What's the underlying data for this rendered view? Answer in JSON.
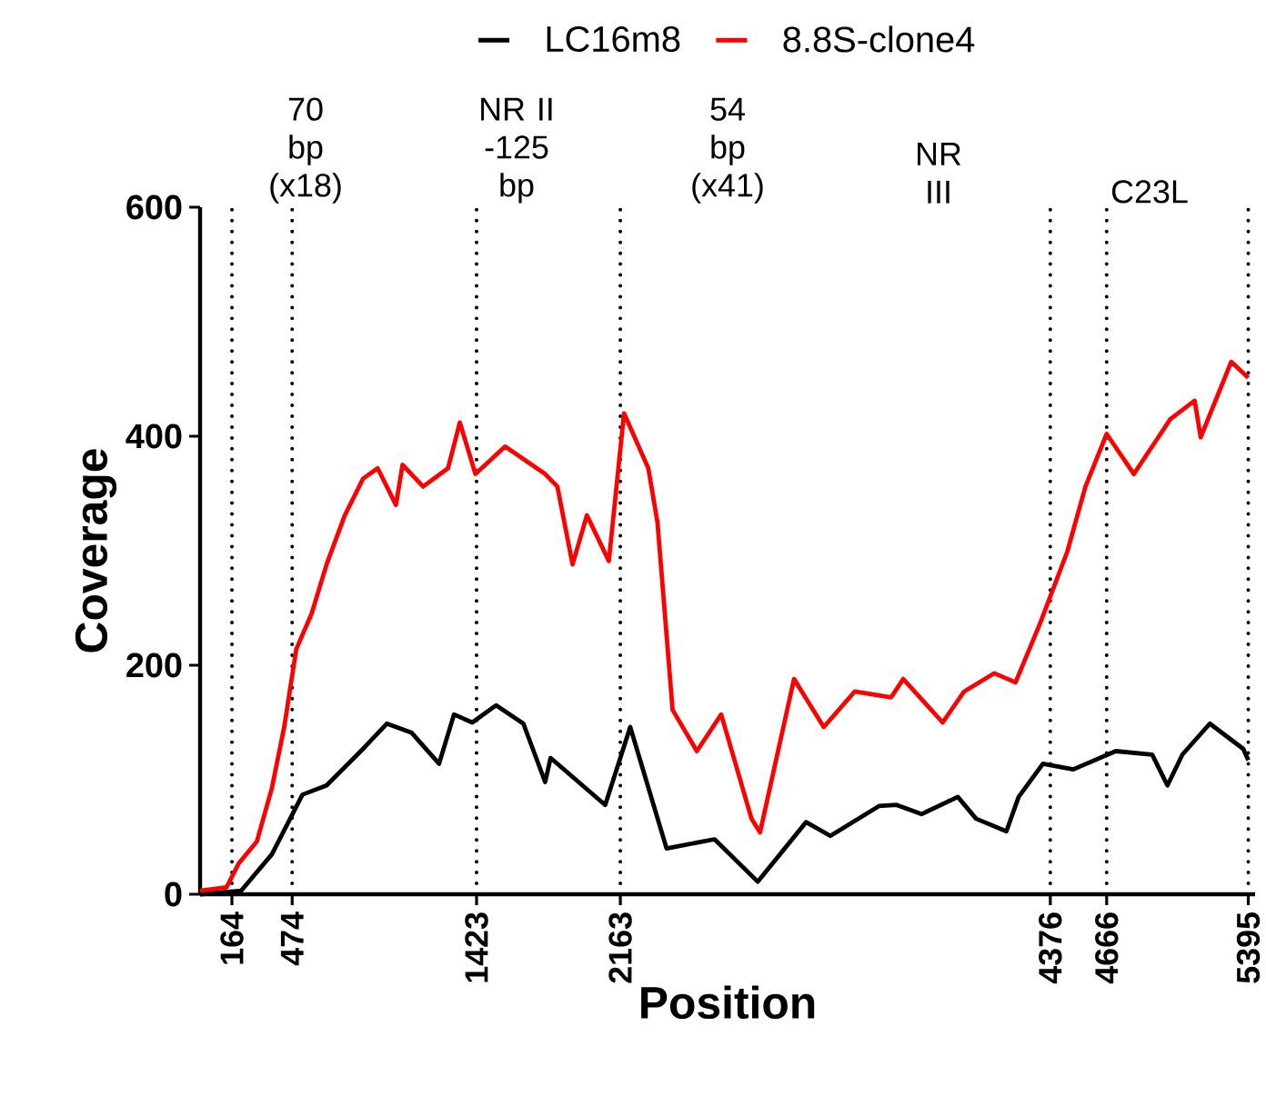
{
  "chart_data": {
    "type": "line",
    "xlabel": "Position",
    "ylabel": "Coverage",
    "xlim": [
      0,
      5430
    ],
    "ylim": [
      0,
      600
    ],
    "xticks": [
      164,
      474,
      1423,
      2163,
      4376,
      4666,
      5395
    ],
    "yticks": [
      0,
      200,
      400,
      600
    ],
    "grid": false,
    "legend": "top",
    "marker": "none",
    "line_style": "solid",
    "series": [
      {
        "name": "LC16m8",
        "color": "#000000",
        "x": [
          0,
          211,
          370,
          527,
          651,
          839,
          961,
          1089,
          1230,
          1307,
          1401,
          1523,
          1664,
          1776,
          1804,
          2085,
          2214,
          2401,
          2648,
          2870,
          3119,
          3244,
          3494,
          3585,
          3713,
          3900,
          3994,
          4150,
          4213,
          4338,
          4494,
          4713,
          4900,
          4979,
          5056,
          5197,
          5369,
          5395
        ],
        "values": [
          0,
          3,
          35,
          87,
          95,
          127,
          149,
          141,
          114,
          157,
          150,
          165,
          149,
          98,
          119,
          78,
          146,
          40,
          48,
          11,
          63,
          51,
          77,
          78,
          70,
          85,
          66,
          55,
          85,
          114,
          109,
          125,
          122,
          95,
          122,
          149,
          127,
          117
        ]
      },
      {
        "name": "8.8S-clone4",
        "color": "#ff0000",
        "x": [
          0,
          136,
          199,
          292,
          370,
          433,
          495,
          574,
          651,
          745,
          839,
          914,
          1008,
          1042,
          1148,
          1276,
          1337,
          1417,
          1570,
          1682,
          1776,
          1839,
          1917,
          1991,
          2104,
          2182,
          2307,
          2354,
          2432,
          2557,
          2682,
          2838,
          2882,
          3057,
          3210,
          3369,
          3557,
          3619,
          3822,
          3932,
          4088,
          4197,
          4322,
          4463,
          4557,
          4666,
          4806,
          4994,
          5119,
          5150,
          5307,
          5395
        ],
        "values": [
          3,
          6,
          27,
          46,
          93,
          146,
          214,
          245,
          288,
          331,
          363,
          372,
          340,
          375,
          356,
          372,
          412,
          367,
          391,
          378,
          367,
          356,
          288,
          331,
          291,
          420,
          372,
          325,
          161,
          125,
          157,
          66,
          54,
          188,
          146,
          177,
          172,
          188,
          150,
          177,
          193,
          185,
          236,
          299,
          356,
          402,
          367,
          415,
          431,
          399,
          465,
          451
        ]
      }
    ],
    "ref_lines": [
      {
        "axis": "x",
        "value": 164,
        "color": "#000000",
        "line_style": "dotted"
      },
      {
        "axis": "x",
        "value": 474,
        "color": "#000000",
        "line_style": "dotted"
      },
      {
        "axis": "x",
        "value": 1423,
        "color": "#000000",
        "line_style": "dotted"
      },
      {
        "axis": "x",
        "value": 2163,
        "color": "#000000",
        "line_style": "dotted"
      },
      {
        "axis": "x",
        "value": 4376,
        "color": "#000000",
        "line_style": "dotted"
      },
      {
        "axis": "x",
        "value": 4666,
        "color": "#000000",
        "line_style": "dotted"
      },
      {
        "axis": "x",
        "value": 5395,
        "color": "#000000",
        "line_style": "dotted"
      }
    ],
    "annotations": [
      "70 bp (x18)",
      "NR II -125 bp",
      "54 bp (x41)",
      "NR III",
      "C23L"
    ]
  }
}
